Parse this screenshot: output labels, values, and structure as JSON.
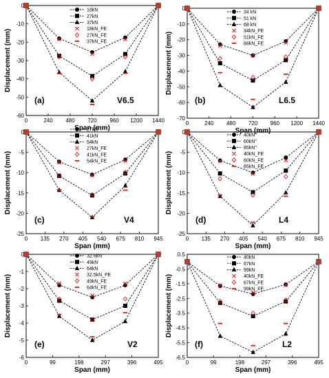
{
  "chart_data": [
    {
      "type": "line",
      "panel_label": "(a)",
      "specimen": "V6.5",
      "xlabel": "Span (mm)",
      "ylabel": "Displacement (mm)",
      "xlim": [
        0,
        1440
      ],
      "ylim": [
        -60,
        0
      ],
      "xticks": [
        0,
        240,
        480,
        720,
        960,
        1200,
        1440
      ],
      "yticks": [
        0,
        -10,
        -20,
        -30,
        -40,
        -50,
        -60
      ],
      "legend_position": "top-right",
      "series": [
        {
          "name": "18kN",
          "marker": "circle",
          "x": [
            0,
            360,
            720,
            1080,
            1440
          ],
          "y": [
            0,
            -18,
            -25.5,
            -17.5,
            0
          ]
        },
        {
          "name": "27kN",
          "marker": "square",
          "x": [
            0,
            360,
            720,
            1080,
            1440
          ],
          "y": [
            0,
            -27.5,
            -38.5,
            -26.5,
            0
          ]
        },
        {
          "name": "37kN",
          "marker": "triangle",
          "x": [
            0,
            360,
            720,
            1080,
            1440
          ],
          "y": [
            0,
            -36.5,
            -52,
            -36,
            0
          ]
        },
        {
          "name": "18kN_FE",
          "marker": "x",
          "x": [
            360,
            720,
            1080
          ],
          "y": [
            -18.5,
            -26.5,
            -18.5
          ]
        },
        {
          "name": "27kN_FE",
          "marker": "diamond",
          "x": [
            360,
            720,
            1080
          ],
          "y": [
            -28,
            -40,
            -28
          ]
        },
        {
          "name": "37kN_FE",
          "marker": "dash",
          "x": [
            360,
            720,
            1080
          ],
          "y": [
            -37,
            -54,
            -37
          ]
        }
      ]
    },
    {
      "type": "line",
      "panel_label": "(b)",
      "specimen": "L6.5",
      "xlabel": "Span (mm)",
      "ylabel": "Displacement (mm)",
      "xlim": [
        0,
        1440
      ],
      "ylim": [
        -70,
        0
      ],
      "xticks": [
        0,
        240,
        480,
        720,
        960,
        1200,
        1440
      ],
      "yticks": [
        0,
        -10,
        -20,
        -30,
        -40,
        -50,
        -60,
        -70
      ],
      "legend_position": "top-right",
      "series": [
        {
          "name": "34 kN",
          "marker": "circle",
          "x": [
            0,
            360,
            720,
            1080,
            1440
          ],
          "y": [
            0,
            -23,
            -30,
            -21,
            0
          ]
        },
        {
          "name": "51 kN",
          "marker": "square",
          "x": [
            0,
            360,
            720,
            1080,
            1440
          ],
          "y": [
            0,
            -35,
            -46,
            -33,
            0
          ]
        },
        {
          "name": "68 kN",
          "marker": "triangle",
          "x": [
            0,
            360,
            720,
            1080,
            1440
          ],
          "y": [
            0,
            -49,
            -63,
            -47,
            0
          ]
        },
        {
          "name": "34kN_FE",
          "marker": "x",
          "x": [
            360,
            720,
            1080
          ],
          "y": [
            -24,
            -30,
            -22
          ]
        },
        {
          "name": "51kN_FE",
          "marker": "diamond",
          "x": [
            360,
            720,
            1080
          ],
          "y": [
            -32,
            -44,
            -31
          ]
        },
        {
          "name": "68kN_FE",
          "marker": "dash",
          "x": [
            360,
            720,
            1080
          ],
          "y": [
            -41,
            -58,
            -42
          ]
        }
      ]
    },
    {
      "type": "line",
      "panel_label": "(c)",
      "specimen": "V4",
      "xlabel": "Span (mm)",
      "ylabel": "Displacement (mm)",
      "xlim": [
        0,
        945
      ],
      "ylim": [
        -25,
        0
      ],
      "xticks": [
        0,
        135,
        270,
        405,
        540,
        675,
        810,
        945
      ],
      "yticks": [
        0,
        -5,
        -10,
        -15,
        -20,
        -25
      ],
      "legend_position": "top-right",
      "series": [
        {
          "name": "27kN",
          "marker": "circle",
          "x": [
            0,
            236,
            472,
            709,
            945
          ],
          "y": [
            0,
            -7.3,
            -10.5,
            -6.8,
            0
          ]
        },
        {
          "name": "41kN",
          "marker": "square",
          "x": [
            0,
            236,
            472,
            709,
            945
          ],
          "y": [
            0,
            -10.8,
            -15.6,
            -10.2,
            0
          ]
        },
        {
          "name": "54kN",
          "marker": "triangle",
          "x": [
            0,
            236,
            472,
            709,
            945
          ],
          "y": [
            0,
            -14.3,
            -21,
            -13.2,
            0
          ]
        },
        {
          "name": "27kN_FE",
          "marker": "x",
          "x": [
            236,
            472,
            709
          ],
          "y": [
            -7.5,
            -10.7,
            -7.1
          ]
        },
        {
          "name": "41kN_FE",
          "marker": "diamond",
          "x": [
            236,
            472,
            709
          ],
          "y": [
            -10.7,
            -15.4,
            -9.9
          ]
        },
        {
          "name": "54kN_FE",
          "marker": "dash",
          "x": [
            236,
            472,
            709
          ],
          "y": [
            -14.2,
            -20.8,
            -14.3
          ]
        }
      ]
    },
    {
      "type": "line",
      "panel_label": "(d)",
      "specimen": "L4",
      "xlabel": "Span (mm)",
      "ylabel": "Displacement (mm)",
      "xlim": [
        0,
        945
      ],
      "ylim": [
        -25,
        0
      ],
      "xticks": [
        0,
        135,
        270,
        405,
        540,
        675,
        810,
        945
      ],
      "yticks": [
        0,
        -5,
        -10,
        -15,
        -20,
        -25
      ],
      "legend_position": "top-right",
      "series": [
        {
          "name": "40kN\"",
          "marker": "circle",
          "x": [
            0,
            236,
            472,
            709,
            945
          ],
          "y": [
            0,
            -7,
            -10,
            -6.3,
            0
          ]
        },
        {
          "name": "60kN\"",
          "marker": "square",
          "x": [
            0,
            236,
            472,
            709,
            945
          ],
          "y": [
            0,
            -10.2,
            -14.8,
            -9.5,
            0
          ]
        },
        {
          "name": "85kN\"",
          "marker": "triangle",
          "x": [
            0,
            236,
            472,
            709,
            945
          ],
          "y": [
            0,
            -15.8,
            -23,
            -14.9,
            0
          ]
        },
        {
          "name": "40kN_FE",
          "marker": "x",
          "x": [
            236,
            472,
            709
          ],
          "y": [
            -7.2,
            -10.3,
            -7
          ]
        },
        {
          "name": "60kN_FE",
          "marker": "diamond",
          "x": [
            236,
            472,
            709
          ],
          "y": [
            -11.5,
            -15.5,
            -11
          ]
        },
        {
          "name": "85kN_FE",
          "marker": "dash",
          "x": [
            236,
            472,
            709
          ],
          "y": [
            -15.5,
            -22.2,
            -15.8
          ]
        }
      ]
    },
    {
      "type": "line",
      "panel_label": "(e)",
      "specimen": "V2",
      "xlabel": "Span (mm)",
      "ylabel": "Displacement (mm)",
      "xlim": [
        0,
        495
      ],
      "ylim": [
        -6,
        0
      ],
      "xticks": [
        0,
        99,
        198,
        297,
        396,
        495
      ],
      "yticks": [
        0,
        -1,
        -2,
        -3,
        -4,
        -5,
        -6
      ],
      "legend_position": "top-right",
      "series": [
        {
          "name": "32.5kN",
          "marker": "circle",
          "x": [
            0,
            124,
            248,
            371,
            495
          ],
          "y": [
            0,
            -1.8,
            -2.5,
            -1.8,
            0
          ]
        },
        {
          "name": "49kN",
          "marker": "square",
          "x": [
            0,
            124,
            248,
            371,
            495
          ],
          "y": [
            0,
            -2.7,
            -3.8,
            -3,
            0
          ]
        },
        {
          "name": "64kN",
          "marker": "triangle",
          "x": [
            0,
            124,
            248,
            371,
            495
          ],
          "y": [
            0,
            -3.6,
            -5,
            -3.9,
            0
          ]
        },
        {
          "name": "32.5kN_FE",
          "marker": "x",
          "x": [
            124,
            248,
            371
          ],
          "y": [
            -1.7,
            -2.4,
            -1.7
          ]
        },
        {
          "name": "49kN_FE",
          "marker": "diamond",
          "x": [
            124,
            248,
            371
          ],
          "y": [
            -2.6,
            -3.8,
            -2.6
          ]
        },
        {
          "name": "64kN_FE",
          "marker": "dash",
          "x": [
            124,
            248,
            371
          ],
          "y": [
            -3.5,
            -4.8,
            -3.4
          ]
        }
      ]
    },
    {
      "type": "line",
      "panel_label": "(f)",
      "specimen": "L2",
      "xlabel": "Span (mm)",
      "ylabel": "Displacement (mm)",
      "xlim": [
        0,
        495
      ],
      "ylim": [
        -6.5,
        0
      ],
      "xticks": [
        0,
        99,
        198,
        297,
        396,
        495
      ],
      "yticks": [
        0.5,
        -0.5,
        -1.5,
        -2.5,
        -3.5,
        -4.5,
        -5.5,
        -6.5
      ],
      "legend_position": "top-right",
      "series": [
        {
          "name": "40kN",
          "marker": "circle",
          "x": [
            0,
            124,
            248,
            371,
            495
          ],
          "y": [
            0,
            -1.65,
            -2.2,
            -1.55,
            0
          ]
        },
        {
          "name": "67kN",
          "marker": "square",
          "x": [
            0,
            124,
            248,
            371,
            495
          ],
          "y": [
            0,
            -2.8,
            -3.7,
            -2.7,
            0
          ]
        },
        {
          "name": "99kN",
          "marker": "triangle",
          "x": [
            0,
            124,
            248,
            371,
            495
          ],
          "y": [
            0,
            -5.05,
            -6.15,
            -4.9,
            0
          ]
        },
        {
          "name": "40kN_FE",
          "marker": "x",
          "x": [
            124,
            248,
            371
          ],
          "y": [
            -1.6,
            -2.1,
            -1.6
          ]
        },
        {
          "name": "67kN_FE",
          "marker": "diamond",
          "x": [
            124,
            248,
            371
          ],
          "y": [
            -2.7,
            -3.5,
            -2.6
          ]
        },
        {
          "name": "99kN_FE",
          "marker": "dash",
          "x": [
            124,
            248,
            371
          ],
          "y": [
            -4.2,
            -5.7,
            -4.2
          ]
        }
      ]
    }
  ],
  "colors": {
    "test_series": "#000000",
    "fe_series": "#e3120b",
    "axis": "#000000"
  }
}
